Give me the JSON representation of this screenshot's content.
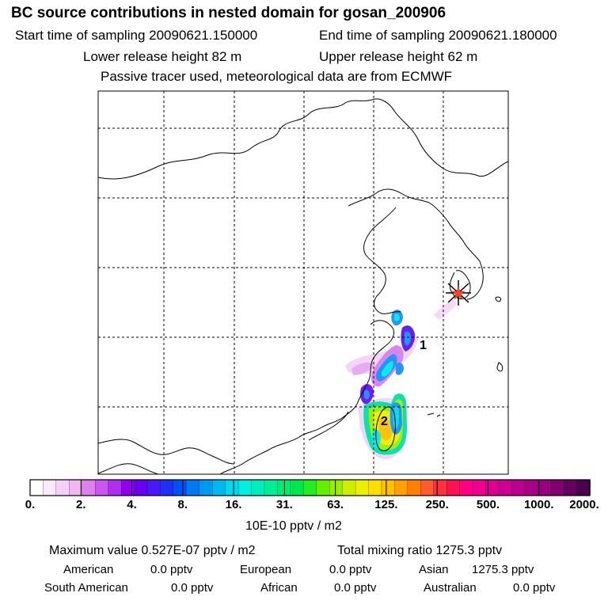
{
  "header": {
    "title": "BC  source contributions in nested domain for gosan_200906",
    "start_time": "Start time of sampling 20090621.150000",
    "end_time": "End time of sampling 20090621.180000",
    "lower_release": "Lower release height   82 m",
    "upper_release": "Upper release height   62 m",
    "note": "Passive tracer used, meteorological data are from ECMWF"
  },
  "map": {
    "markers": [
      "1",
      "2"
    ],
    "station_icon": "asterisk-star-icon"
  },
  "colorbar": {
    "ticks": [
      "0.",
      "2.",
      "4.",
      "8.",
      "16.",
      "31.",
      "63.",
      "125.",
      "250.",
      "500.",
      "1000.",
      "2000."
    ],
    "units": "10E-10 pptv / m2",
    "colors": [
      "#ffffff",
      "#fbe9fb",
      "#f5d1f7",
      "#efb8f3",
      "#df80f0",
      "#cc55ee",
      "#b12ef0",
      "#9000f0",
      "#6a00f0",
      "#4a18f5",
      "#2030f5",
      "#0050f5",
      "#0078f5",
      "#0098f0",
      "#00b8ee",
      "#00d8ee",
      "#00eedd",
      "#00eebb",
      "#00ee99",
      "#00ee70",
      "#00e850",
      "#22ee22",
      "#66ee00",
      "#99ee00",
      "#ccee00",
      "#eeee00",
      "#ffdd00",
      "#ffc000",
      "#ffa000",
      "#ff8000",
      "#ff5a30",
      "#ff3040",
      "#ff1050",
      "#ff0080",
      "#f00090",
      "#dd0090",
      "#cc0090",
      "#bb0090",
      "#aa0088",
      "#990080",
      "#800070",
      "#660060",
      "#4d0050"
    ]
  },
  "stats": {
    "max_label": "Maximum value  0.527E-07 pptv / m2",
    "total_label": "Total mixing ratio      1275.3 pptv",
    "american_label": "American",
    "american_value": "0.0 pptv",
    "european_label": "European",
    "european_value": "0.0 pptv",
    "asian_label": "Asian",
    "asian_value": "1275.3 pptv",
    "south_american_label": "South American",
    "south_american_value": "0.0 pptv",
    "african_label": "African",
    "african_value": "0.0 pptv",
    "australian_label": "Australian",
    "australian_value": "0.0 pptv"
  }
}
